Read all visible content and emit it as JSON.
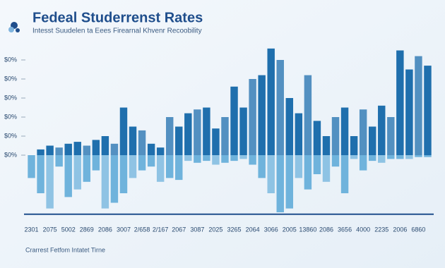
{
  "chart_data": {
    "type": "bar",
    "title": "Fedeal Studerrenst Rates",
    "subtitle": "Intesst Suudelen ta Eees Firearnal Khvenr Recoobility",
    "footer": "Crarrest Fetfom Intatet Tirne",
    "categories": [
      "2301",
      null,
      "2075",
      null,
      "5002",
      null,
      "2869",
      null,
      "2086",
      null,
      "3007",
      null,
      "2/658",
      null,
      "2/167",
      null,
      "2067",
      null,
      "3087",
      null,
      "2025",
      null,
      "3265",
      null,
      "2064",
      null,
      "3066",
      null,
      "2005",
      null,
      "13860",
      null,
      "2086",
      null,
      "3656",
      null,
      "4000",
      null,
      "2235",
      null,
      "2006",
      null,
      "6860",
      null
    ],
    "series": [
      {
        "color": "#1f6fad",
        "values": [
          0,
          3,
          5,
          4,
          6,
          7,
          5,
          8,
          10,
          6,
          25,
          15,
          13,
          6,
          4,
          20,
          15,
          22,
          24,
          25,
          14,
          20,
          36,
          25,
          40,
          42,
          56,
          50,
          30,
          22,
          42,
          18,
          10,
          20,
          25,
          10,
          24,
          15,
          26,
          20,
          55,
          45,
          52,
          47
        ]
      },
      {
        "color": "#6fb3dc",
        "values": [
          -12,
          -20,
          -28,
          -6,
          -22,
          -18,
          -14,
          -8,
          -28,
          -25,
          -20,
          -12,
          -8,
          -6,
          -14,
          -12,
          -13,
          -3,
          -4,
          -3,
          -5,
          -4,
          -3,
          -2,
          -5,
          -12,
          -20,
          -30,
          -28,
          -12,
          -18,
          -10,
          -14,
          -6,
          -20,
          -2,
          -8,
          -3,
          -4,
          -2,
          -2,
          -2,
          -1,
          -1
        ]
      }
    ],
    "ylim": [
      -31,
      58
    ],
    "yticks": [
      {
        "value": 0,
        "label": "$0%"
      },
      {
        "value": 10,
        "label": "$0%"
      },
      {
        "value": 20,
        "label": "$0%"
      },
      {
        "value": 30,
        "label": "$0%"
      },
      {
        "value": 40,
        "label": "$0%"
      },
      {
        "value": 50,
        "label": "$0%"
      }
    ]
  }
}
